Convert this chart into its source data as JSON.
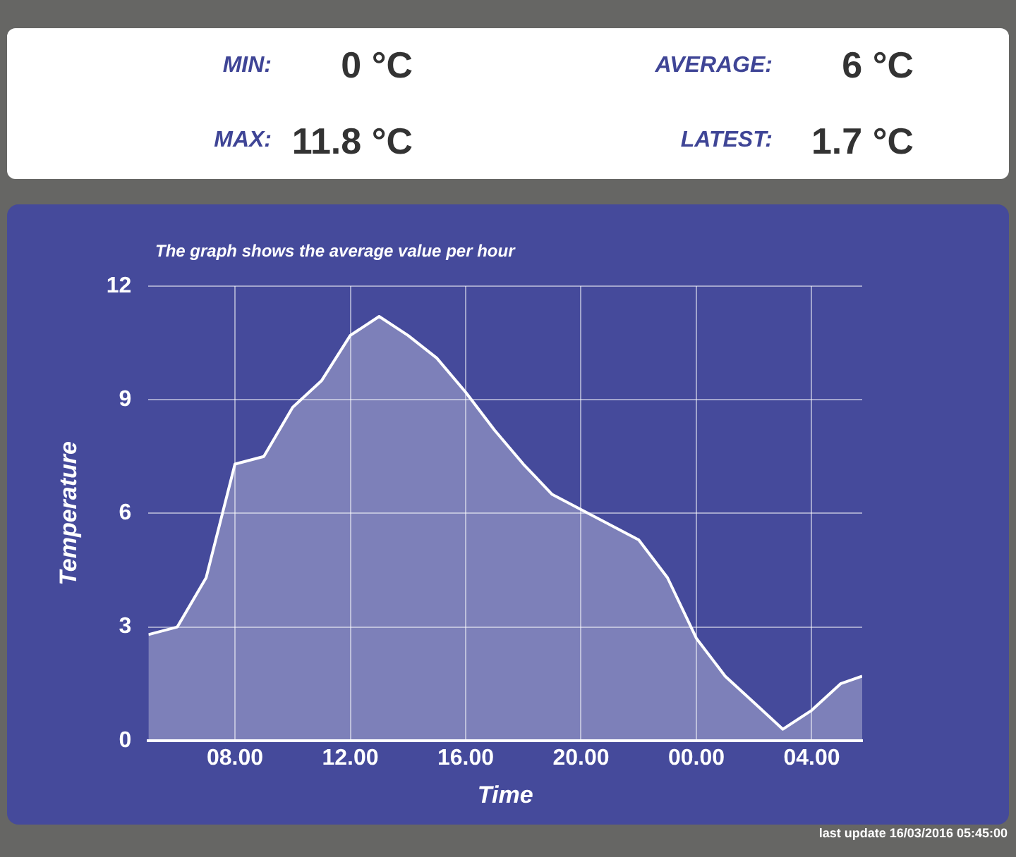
{
  "chart_data": [
    {
      "type": "other",
      "annotations": [
        "MIN:",
        "0 °C",
        "AVERAGE:",
        "6 °C",
        "MAX:",
        "11.8 °C",
        "LATEST:",
        "1.7 °C"
      ]
    },
    {
      "type": "area",
      "subtitle": "The graph shows the average value per hour",
      "xlabel": "Time",
      "ylabel": "Temperature",
      "x": [
        "2016-03-15T05:00",
        "2016-03-15T06:00",
        "2016-03-15T07:00",
        "2016-03-15T08:00",
        "2016-03-15T09:00",
        "2016-03-15T10:00",
        "2016-03-15T11:00",
        "2016-03-15T12:00",
        "2016-03-15T13:00",
        "2016-03-15T14:00",
        "2016-03-15T15:00",
        "2016-03-15T16:00",
        "2016-03-15T17:00",
        "2016-03-15T18:00",
        "2016-03-15T19:00",
        "2016-03-15T20:00",
        "2016-03-15T21:00",
        "2016-03-15T22:00",
        "2016-03-15T23:00",
        "2016-03-16T00:00",
        "2016-03-16T01:00",
        "2016-03-16T02:00",
        "2016-03-16T03:00",
        "2016-03-16T04:00",
        "2016-03-16T05:00",
        "2016-03-16T05:45"
      ],
      "series": [
        {
          "color": "#ffffff",
          "values": [
            2.8,
            3.0,
            4.3,
            7.3,
            7.5,
            8.8,
            9.5,
            10.7,
            11.2,
            10.7,
            10.1,
            9.2,
            8.2,
            7.3,
            6.5,
            6.1,
            5.7,
            5.3,
            4.3,
            2.7,
            1.7,
            1.0,
            0.3,
            0.8,
            1.5,
            1.7
          ]
        }
      ],
      "xlim": [
        "2016-03-15T05:00",
        "2016-03-16T05:45"
      ],
      "xticks": [
        {
          "value": "2016-03-15T08:00",
          "label": "08.00"
        },
        {
          "value": "2016-03-15T12:00",
          "label": "12.00"
        },
        {
          "value": "2016-03-15T16:00",
          "label": "16.00"
        },
        {
          "value": "2016-03-15T20:00",
          "label": "20.00"
        },
        {
          "value": "2016-03-16T00:00",
          "label": "00.00"
        },
        {
          "value": "2016-03-16T04:00",
          "label": "04.00"
        }
      ],
      "ylim": [
        0,
        12
      ],
      "yticks": [
        0,
        3,
        6,
        9,
        12
      ],
      "grid": true,
      "annotations": [
        "last update 16/03/2016 05:45:00"
      ]
    }
  ]
}
